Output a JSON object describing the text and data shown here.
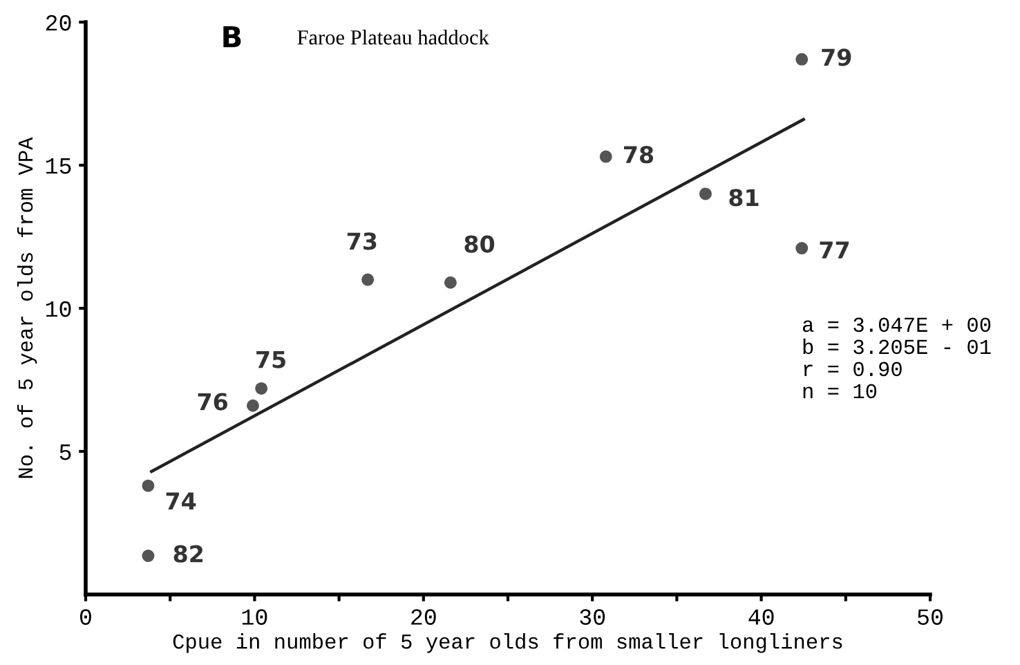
{
  "chart_data": {
    "type": "scatter",
    "title": "Faroe Plateau haddock",
    "xlabel": "Cpue in number of 5 year olds from smaller longliners",
    "ylabel": "No. of 5 year olds from VPA",
    "series": [
      {
        "color": "#555555",
        "marker": "circle",
        "x": [
          16.7,
          21.6,
          30.8,
          36.7,
          42.4,
          42.4,
          10.4,
          9.9,
          3.7,
          3.7
        ],
        "values": [
          11.0,
          10.9,
          15.3,
          14.0,
          18.7,
          12.1,
          7.2,
          6.6,
          3.8,
          1.35
        ]
      },
      {
        "type": "line",
        "color": "#222222",
        "marker": "none",
        "line_style": "solid",
        "x": [
          3.9,
          42.5
        ],
        "values": [
          4.3,
          16.6
        ]
      }
    ],
    "annotations": [
      "B",
      {
        "text": "73",
        "x": 16.7,
        "y": 11.0
      },
      {
        "text": "80",
        "x": 21.6,
        "y": 10.9
      },
      {
        "text": "78",
        "x": 30.8,
        "y": 15.3
      },
      {
        "text": "81",
        "x": 36.7,
        "y": 14.0
      },
      {
        "text": "79",
        "x": 42.4,
        "y": 18.7
      },
      {
        "text": "77",
        "x": 42.4,
        "y": 12.1
      },
      {
        "text": "75",
        "x": 10.4,
        "y": 7.2
      },
      {
        "text": "76",
        "x": 9.9,
        "y": 6.6
      },
      {
        "text": "74",
        "x": 3.7,
        "y": 3.8
      },
      {
        "text": "82",
        "x": 3.7,
        "y": 1.35
      },
      "a = 3.047E + 00",
      "b = 3.205E - 01",
      "r = 0.90",
      "n = 10"
    ],
    "xlim": [
      0,
      50
    ],
    "ylim": [
      0,
      20
    ],
    "xticks": [
      0,
      10,
      20,
      30,
      40,
      50,
      {
        "value": 5,
        "label": null
      },
      {
        "value": 15,
        "label": null
      },
      {
        "value": 25,
        "label": null
      },
      {
        "value": 35,
        "label": null
      },
      {
        "value": 45,
        "label": null
      }
    ],
    "yticks": [
      5,
      10,
      15,
      20
    ],
    "grid": false,
    "legend": false
  }
}
